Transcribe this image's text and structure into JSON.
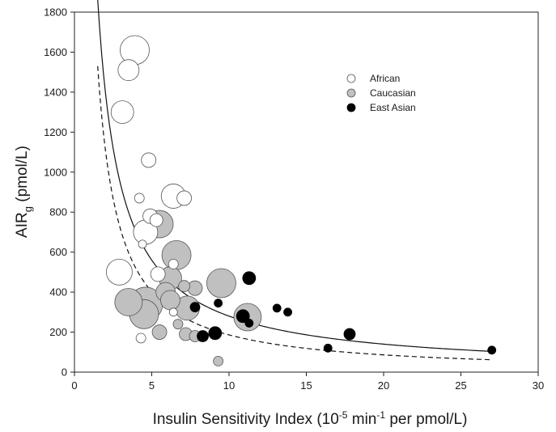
{
  "chart_data": {
    "type": "scatter",
    "xlabel_main": "Insulin Sensitivity Index (10",
    "xlabel_sup1": "-5",
    "xlabel_mid": " min",
    "xlabel_sup2": "-1",
    "xlabel_end": " per pmol/L)",
    "ylabel_main": "AIR",
    "ylabel_sub": "g",
    "ylabel_end": " (pmol/L)",
    "xlim": [
      0,
      30
    ],
    "ylim": [
      0,
      1800
    ],
    "xticks": [
      0,
      5,
      10,
      15,
      20,
      25,
      30
    ],
    "yticks": [
      0,
      200,
      400,
      600,
      800,
      1000,
      1200,
      1400,
      1600,
      1800
    ],
    "legend": [
      {
        "name": "African",
        "fill": "#ffffff"
      },
      {
        "name": "Caucasian",
        "fill": "#c0c0c0"
      },
      {
        "name": "East Asian",
        "fill": "#000000"
      }
    ],
    "series": [
      {
        "name": "African",
        "fill": "#ffffff",
        "points": [
          {
            "x": 3.9,
            "y": 1610,
            "size": 18
          },
          {
            "x": 3.5,
            "y": 1510,
            "size": 13
          },
          {
            "x": 3.1,
            "y": 1300,
            "size": 14
          },
          {
            "x": 4.8,
            "y": 1060,
            "size": 9
          },
          {
            "x": 4.2,
            "y": 870,
            "size": 6
          },
          {
            "x": 6.4,
            "y": 880,
            "size": 15
          },
          {
            "x": 7.1,
            "y": 870,
            "size": 9
          },
          {
            "x": 4.9,
            "y": 780,
            "size": 9
          },
          {
            "x": 5.3,
            "y": 760,
            "size": 8
          },
          {
            "x": 4.6,
            "y": 700,
            "size": 15
          },
          {
            "x": 4.4,
            "y": 640,
            "size": 5
          },
          {
            "x": 2.9,
            "y": 500,
            "size": 16
          },
          {
            "x": 5.4,
            "y": 490,
            "size": 9
          },
          {
            "x": 6.4,
            "y": 540,
            "size": 6
          },
          {
            "x": 4.3,
            "y": 170,
            "size": 6
          },
          {
            "x": 6.4,
            "y": 300,
            "size": 5
          }
        ]
      },
      {
        "name": "Caucasian",
        "fill": "#c0c0c0",
        "points": [
          {
            "x": 5.5,
            "y": 740,
            "size": 17
          },
          {
            "x": 6.6,
            "y": 585,
            "size": 18
          },
          {
            "x": 6.2,
            "y": 470,
            "size": 14
          },
          {
            "x": 5.9,
            "y": 400,
            "size": 12
          },
          {
            "x": 4.6,
            "y": 340,
            "size": 21
          },
          {
            "x": 3.5,
            "y": 350,
            "size": 17
          },
          {
            "x": 4.5,
            "y": 290,
            "size": 18
          },
          {
            "x": 6.2,
            "y": 360,
            "size": 12
          },
          {
            "x": 7.3,
            "y": 320,
            "size": 15
          },
          {
            "x": 7.1,
            "y": 430,
            "size": 7
          },
          {
            "x": 7.8,
            "y": 420,
            "size": 9
          },
          {
            "x": 9.5,
            "y": 445,
            "size": 18
          },
          {
            "x": 11.2,
            "y": 275,
            "size": 17
          },
          {
            "x": 5.5,
            "y": 200,
            "size": 9
          },
          {
            "x": 6.7,
            "y": 240,
            "size": 6
          },
          {
            "x": 7.2,
            "y": 190,
            "size": 8
          },
          {
            "x": 7.8,
            "y": 180,
            "size": 7
          },
          {
            "x": 9.3,
            "y": 55,
            "size": 6
          }
        ]
      },
      {
        "name": "East Asian",
        "fill": "#000000",
        "points": [
          {
            "x": 7.8,
            "y": 325,
            "size": 6
          },
          {
            "x": 8.3,
            "y": 180,
            "size": 7
          },
          {
            "x": 9.1,
            "y": 195,
            "size": 8
          },
          {
            "x": 9.3,
            "y": 345,
            "size": 5
          },
          {
            "x": 10.9,
            "y": 280,
            "size": 8
          },
          {
            "x": 11.3,
            "y": 470,
            "size": 8
          },
          {
            "x": 11.3,
            "y": 245,
            "size": 5
          },
          {
            "x": 13.1,
            "y": 320,
            "size": 5
          },
          {
            "x": 13.8,
            "y": 300,
            "size": 5
          },
          {
            "x": 16.4,
            "y": 120,
            "size": 5
          },
          {
            "x": 17.8,
            "y": 190,
            "size": 7
          },
          {
            "x": 27,
            "y": 110,
            "size": 5
          }
        ]
      }
    ],
    "curves": [
      {
        "name": "solid fit",
        "style": "solid",
        "k": 2800,
        "x_range": [
          1.5,
          27
        ]
      },
      {
        "name": "dashed fit",
        "style": "dashed",
        "k": 2400,
        "p": 1.11,
        "x_range": [
          1.5,
          27
        ]
      }
    ]
  }
}
